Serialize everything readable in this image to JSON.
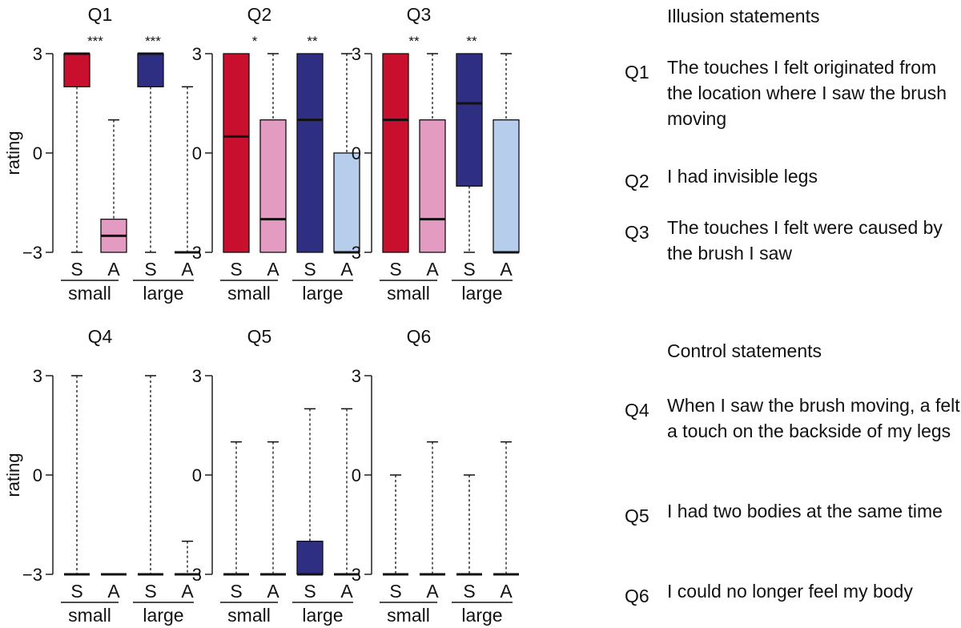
{
  "colors": {
    "small_S": "#c8102e",
    "small_A": "#e49bc2",
    "large_S": "#2e2e83",
    "large_A": "#b6cdec"
  },
  "chart_data": [
    {
      "type": "boxplot",
      "title": "Q1",
      "ylabel": "rating",
      "ylim": [
        -3,
        3
      ],
      "yticks": [
        "−3",
        "0",
        "3"
      ],
      "categories": [
        "S",
        "A",
        "S",
        "A"
      ],
      "groups": [
        "small",
        "large"
      ],
      "boxes": [
        {
          "min": -3,
          "q1": 2,
          "median": 3,
          "q3": 3,
          "max": 3
        },
        {
          "min": -3,
          "q1": -3,
          "median": -2.5,
          "q3": -2,
          "max": 1
        },
        {
          "min": -3,
          "q1": 2,
          "median": 3,
          "q3": 3,
          "max": 3
        },
        {
          "min": -3,
          "q1": -3,
          "median": -3,
          "q3": -3,
          "max": 2
        }
      ],
      "significance": [
        "***",
        "***"
      ]
    },
    {
      "type": "boxplot",
      "title": "Q2",
      "ylabel": "",
      "ylim": [
        -3,
        3
      ],
      "yticks": [
        "−3",
        "0",
        "3"
      ],
      "categories": [
        "S",
        "A",
        "S",
        "A"
      ],
      "groups": [
        "small",
        "large"
      ],
      "boxes": [
        {
          "min": -3,
          "q1": -3,
          "median": 0.5,
          "q3": 3,
          "max": 3
        },
        {
          "min": -3,
          "q1": -3,
          "median": -2,
          "q3": 1,
          "max": 3
        },
        {
          "min": -3,
          "q1": -3,
          "median": 1,
          "q3": 3,
          "max": 3
        },
        {
          "min": -3,
          "q1": -3,
          "median": -3,
          "q3": 0,
          "max": 3
        }
      ],
      "significance": [
        "*",
        "**"
      ]
    },
    {
      "type": "boxplot",
      "title": "Q3",
      "ylabel": "",
      "ylim": [
        -3,
        3
      ],
      "yticks": [
        "−3",
        "0",
        "3"
      ],
      "categories": [
        "S",
        "A",
        "S",
        "A"
      ],
      "groups": [
        "small",
        "large"
      ],
      "boxes": [
        {
          "min": -3,
          "q1": -3,
          "median": 1,
          "q3": 3,
          "max": 3
        },
        {
          "min": -3,
          "q1": -3,
          "median": -2,
          "q3": 1,
          "max": 3
        },
        {
          "min": -3,
          "q1": -1,
          "median": 1.5,
          "q3": 3,
          "max": 3
        },
        {
          "min": -3,
          "q1": -3,
          "median": -3,
          "q3": 1,
          "max": 3
        }
      ],
      "significance": [
        "**",
        "**"
      ]
    },
    {
      "type": "boxplot",
      "title": "Q4",
      "ylabel": "rating",
      "ylim": [
        -3,
        3
      ],
      "yticks": [
        "−3",
        "0",
        "3"
      ],
      "categories": [
        "S",
        "A",
        "S",
        "A"
      ],
      "groups": [
        "small",
        "large"
      ],
      "boxes": [
        {
          "min": -3,
          "q1": -3,
          "median": -3,
          "q3": -3,
          "max": 3
        },
        {
          "min": -3,
          "q1": -3,
          "median": -3,
          "q3": -3,
          "max": -3
        },
        {
          "min": -3,
          "q1": -3,
          "median": -3,
          "q3": -3,
          "max": 3
        },
        {
          "min": -3,
          "q1": -3,
          "median": -3,
          "q3": -3,
          "max": -2
        }
      ],
      "significance": [
        "",
        ""
      ]
    },
    {
      "type": "boxplot",
      "title": "Q5",
      "ylabel": "",
      "ylim": [
        -3,
        3
      ],
      "yticks": [
        "−3",
        "0",
        "3"
      ],
      "categories": [
        "S",
        "A",
        "S",
        "A"
      ],
      "groups": [
        "small",
        "large"
      ],
      "boxes": [
        {
          "min": -3,
          "q1": -3,
          "median": -3,
          "q3": -3,
          "max": 1
        },
        {
          "min": -3,
          "q1": -3,
          "median": -3,
          "q3": -3,
          "max": 1
        },
        {
          "min": -3,
          "q1": -3,
          "median": -3,
          "q3": -2,
          "max": 2
        },
        {
          "min": -3,
          "q1": -3,
          "median": -3,
          "q3": -3,
          "max": 2
        }
      ],
      "significance": [
        "",
        ""
      ]
    },
    {
      "type": "boxplot",
      "title": "Q6",
      "ylabel": "",
      "ylim": [
        -3,
        3
      ],
      "yticks": [
        "−3",
        "0",
        "3"
      ],
      "categories": [
        "S",
        "A",
        "S",
        "A"
      ],
      "groups": [
        "small",
        "large"
      ],
      "boxes": [
        {
          "min": -3,
          "q1": -3,
          "median": -3,
          "q3": -3,
          "max": 0
        },
        {
          "min": -3,
          "q1": -3,
          "median": -3,
          "q3": -3,
          "max": 1
        },
        {
          "min": -3,
          "q1": -3,
          "median": -3,
          "q3": -3,
          "max": 0
        },
        {
          "min": -3,
          "q1": -3,
          "median": -3,
          "q3": -3,
          "max": 1
        }
      ],
      "significance": [
        "",
        ""
      ]
    }
  ],
  "statements": {
    "illusion_title": "Illusion statements",
    "control_title": "Control statements",
    "q1": {
      "id": "Q1",
      "text": "The touches I felt originated from the location where I saw the brush moving"
    },
    "q2": {
      "id": "Q2",
      "text": "I had invisible legs"
    },
    "q3": {
      "id": "Q3",
      "text": "The touches I felt were caused by the brush I saw"
    },
    "q4": {
      "id": "Q4",
      "text": "When I saw the brush moving, a felt a touch on the backside of my legs"
    },
    "q5": {
      "id": "Q5",
      "text": "I had two bodies at the same time"
    },
    "q6": {
      "id": "Q6",
      "text": "I could no longer feel my body"
    }
  }
}
